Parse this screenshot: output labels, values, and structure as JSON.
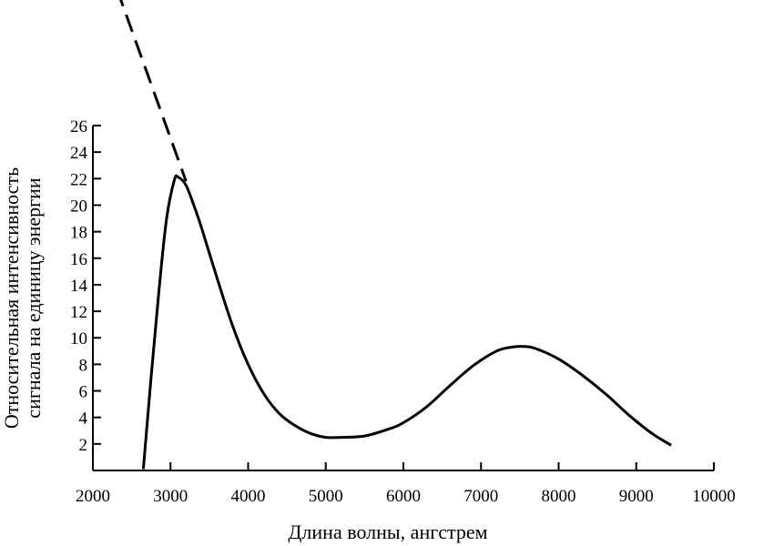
{
  "chart_data": {
    "type": "line",
    "title": "",
    "xlabel": "Длина волны, ангстрем",
    "ylabel_lines": [
      "Относительная интенсивность",
      "сигнала на единицу энергии"
    ],
    "xlim": [
      2000,
      10000
    ],
    "ylim": [
      0,
      26
    ],
    "x_ticks": [
      2000,
      3000,
      4000,
      5000,
      6000,
      7000,
      8000,
      9000,
      10000
    ],
    "y_ticks": [
      2,
      4,
      6,
      8,
      10,
      12,
      14,
      16,
      18,
      20,
      22,
      24,
      26
    ],
    "grid": false,
    "legend": "none",
    "series": [
      {
        "style": "solid",
        "color": "#000000",
        "x": [
          2650,
          2750,
          2850,
          2950,
          3050,
          3100,
          3200,
          3300,
          3400,
          3600,
          3800,
          4000,
          4200,
          4400,
          4600,
          4800,
          5000,
          5200,
          5500,
          5800,
          6000,
          6300,
          6600,
          6900,
          7200,
          7400,
          7550,
          7700,
          8000,
          8300,
          8600,
          8900,
          9200,
          9450
        ],
        "y": [
          0.1,
          7.0,
          13.5,
          19.0,
          21.9,
          22.1,
          21.5,
          20.0,
          18.3,
          14.5,
          10.9,
          8.0,
          5.8,
          4.3,
          3.4,
          2.8,
          2.5,
          2.5,
          2.6,
          3.1,
          3.6,
          4.8,
          6.4,
          7.9,
          9.0,
          9.3,
          9.35,
          9.2,
          8.4,
          7.2,
          5.8,
          4.2,
          2.8,
          1.9
        ]
      },
      {
        "style": "dashed",
        "color": "#000000",
        "x": [
          2310,
          3200
        ],
        "y": [
          36.3,
          21.8
        ]
      }
    ]
  }
}
